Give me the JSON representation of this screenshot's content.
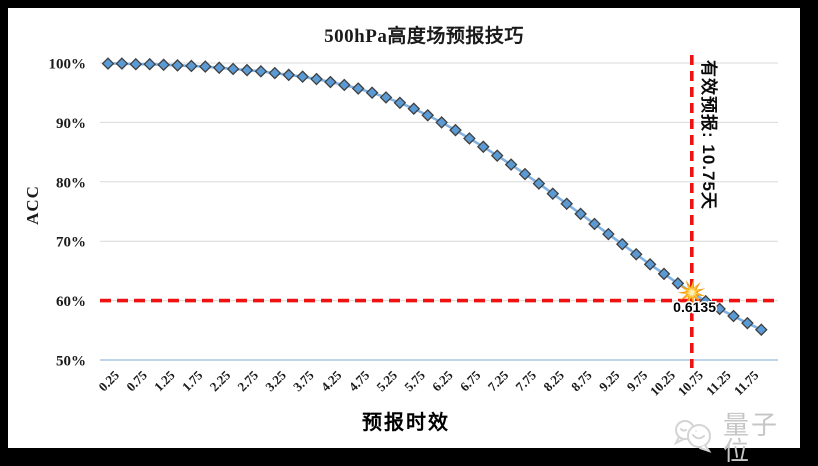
{
  "window": {
    "background": "#000000",
    "panel_background": "#FFFFFF"
  },
  "chart_data": {
    "type": "line",
    "title": "500hPa高度场预报技巧",
    "xlabel": "预报时效",
    "ylabel": "ACC",
    "grid": true,
    "legend": "none",
    "ylim": [
      50,
      100
    ],
    "y_tick_labels": [
      "100%",
      "90%",
      "80%",
      "70%",
      "60%",
      "50%"
    ],
    "y_tick_values": [
      100,
      90,
      80,
      70,
      60,
      50
    ],
    "x_tick_labels": [
      "0.25",
      "0.75",
      "1.25",
      "1.75",
      "2.25",
      "2.75",
      "3.25",
      "3.75",
      "4.25",
      "4.75",
      "5.25",
      "5.75",
      "6.25",
      "6.75",
      "7.25",
      "7.75",
      "8.25",
      "8.75",
      "9.25",
      "9.75",
      "10.25",
      "10.75",
      "11.25",
      "11.75"
    ],
    "x_start": 0.25,
    "x_step": 0.25,
    "x": [
      0.25,
      0.5,
      0.75,
      1,
      1.25,
      1.5,
      1.75,
      2,
      2.25,
      2.5,
      2.75,
      3,
      3.25,
      3.5,
      3.75,
      4,
      4.25,
      4.5,
      4.75,
      5,
      5.25,
      5.5,
      5.75,
      6,
      6.25,
      6.5,
      6.75,
      7,
      7.25,
      7.5,
      7.75,
      8,
      8.25,
      8.5,
      8.75,
      9,
      9.25,
      9.5,
      9.75,
      10,
      10.25,
      10.5,
      10.75,
      11,
      11.25,
      11.5,
      11.75,
      12
    ],
    "series": [
      {
        "name": "ACC",
        "marker": "diamond",
        "values_percent": [
          99.9,
          99.9,
          99.8,
          99.8,
          99.7,
          99.6,
          99.5,
          99.4,
          99.2,
          99.0,
          98.8,
          98.6,
          98.3,
          98.0,
          97.7,
          97.3,
          96.8,
          96.3,
          95.7,
          95.0,
          94.2,
          93.3,
          92.3,
          91.2,
          90.0,
          88.7,
          87.3,
          85.9,
          84.4,
          82.9,
          81.3,
          79.7,
          78.0,
          76.3,
          74.6,
          72.9,
          71.2,
          69.5,
          67.8,
          66.1,
          64.5,
          62.9,
          61.35,
          59.9,
          58.6,
          57.4,
          56.2,
          55.1
        ]
      }
    ],
    "annotations": {
      "highlight_point": {
        "x": 10.75,
        "y_percent": 61.35,
        "label": "0.6135",
        "marker": "starburst"
      },
      "vline": {
        "x": 10.75,
        "style": "dashed",
        "label": "有效预报: 10.75天"
      },
      "hline": {
        "y_percent": 60,
        "style": "dashed"
      }
    }
  },
  "style": {
    "series_fill": "#5B9BD5",
    "series_line": "#7FB2E2",
    "marker_border": "#3F3F3F",
    "gridline": "#D9D9D9",
    "axis_line": "#AAC6E2",
    "dashed_red": "#EE1212",
    "text_color": "#1A1A1A",
    "star_outer": "#F49C12",
    "star_mid": "#FFC93E",
    "star_core": "#FFEFB5",
    "watermark_gray": "#C6C6C6"
  },
  "watermark": {
    "text": "量子位",
    "icon": "chat-bubbles-icon"
  }
}
